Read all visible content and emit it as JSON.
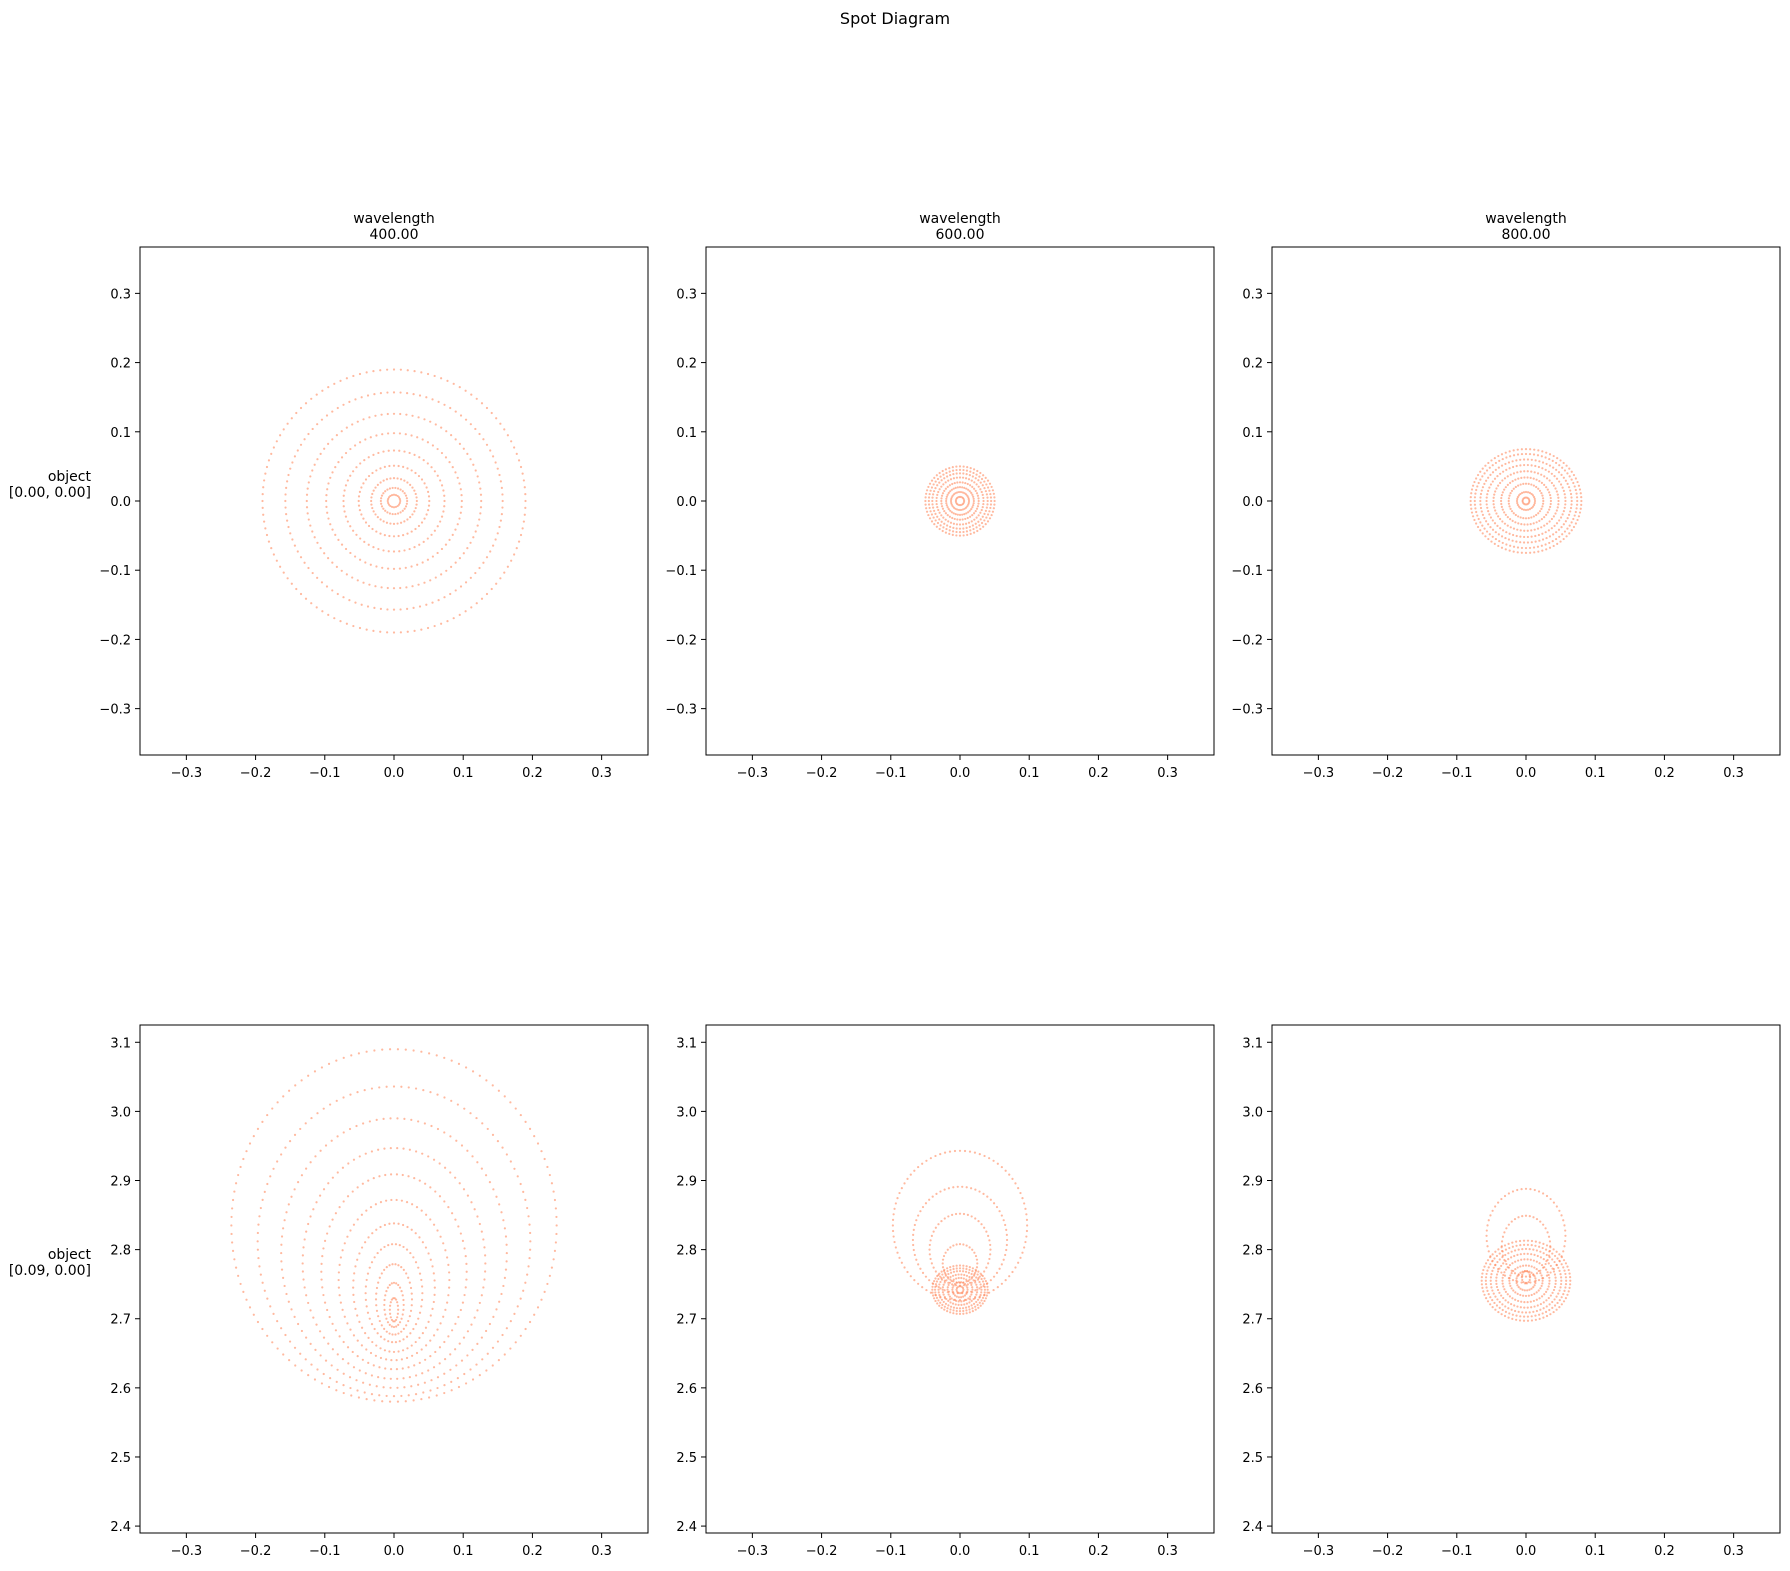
{
  "figure": {
    "title": "Spot Diagram",
    "marker_color": "#ff7f50"
  },
  "chart_data": [
    {
      "type": "scatter",
      "title": "wavelength\n400.00",
      "row_label": "object\n[0.00, 0.00]",
      "xlim": [
        -0.367,
        0.367
      ],
      "ylim": [
        -0.367,
        0.367
      ],
      "xticks": [
        "−0.3",
        "−0.2",
        "−0.1",
        "0.0",
        "0.1",
        "0.2",
        "0.3"
      ],
      "yticks": [
        "−0.3",
        "−0.2",
        "−0.1",
        "0.0",
        "0.1",
        "0.2",
        "0.3"
      ],
      "grid": false,
      "rings": [
        {
          "cx": 0,
          "cy": 0,
          "rx": 0.19,
          "ry": 0.19,
          "n": 120
        },
        {
          "cx": 0,
          "cy": 0,
          "rx": 0.157,
          "ry": 0.157,
          "n": 104
        },
        {
          "cx": 0,
          "cy": 0,
          "rx": 0.126,
          "ry": 0.126,
          "n": 88
        },
        {
          "cx": 0,
          "cy": 0,
          "rx": 0.098,
          "ry": 0.098,
          "n": 72
        },
        {
          "cx": 0,
          "cy": 0,
          "rx": 0.073,
          "ry": 0.073,
          "n": 60
        },
        {
          "cx": 0,
          "cy": 0,
          "rx": 0.051,
          "ry": 0.051,
          "n": 48
        },
        {
          "cx": 0,
          "cy": 0,
          "rx": 0.033,
          "ry": 0.033,
          "n": 40
        },
        {
          "cx": 0,
          "cy": 0,
          "rx": 0.019,
          "ry": 0.019,
          "n": 30
        },
        {
          "cx": 0,
          "cy": 0,
          "rx": 0.009,
          "ry": 0.009,
          "n": 20
        }
      ]
    },
    {
      "type": "scatter",
      "title": "wavelength\n600.00",
      "row_label": "",
      "xlim": [
        -0.367,
        0.367
      ],
      "ylim": [
        -0.367,
        0.367
      ],
      "xticks": [
        "−0.3",
        "−0.2",
        "−0.1",
        "0.0",
        "0.1",
        "0.2",
        "0.3"
      ],
      "yticks": [
        "−0.3",
        "−0.2",
        "−0.1",
        "0.0",
        "0.1",
        "0.2",
        "0.3"
      ],
      "grid": false,
      "rings": [
        {
          "cx": 0,
          "cy": 0,
          "rx": 0.05,
          "ry": 0.05,
          "n": 60
        },
        {
          "cx": 0,
          "cy": 0,
          "rx": 0.045,
          "ry": 0.045,
          "n": 56
        },
        {
          "cx": 0,
          "cy": 0,
          "rx": 0.04,
          "ry": 0.04,
          "n": 52
        },
        {
          "cx": 0,
          "cy": 0,
          "rx": 0.034,
          "ry": 0.034,
          "n": 48
        },
        {
          "cx": 0,
          "cy": 0,
          "rx": 0.027,
          "ry": 0.027,
          "n": 44
        },
        {
          "cx": 0,
          "cy": 0,
          "rx": 0.02,
          "ry": 0.02,
          "n": 40
        },
        {
          "cx": 0,
          "cy": 0,
          "rx": 0.013,
          "ry": 0.013,
          "n": 30
        },
        {
          "cx": 0,
          "cy": 0,
          "rx": 0.006,
          "ry": 0.006,
          "n": 16
        }
      ]
    },
    {
      "type": "scatter",
      "title": "wavelength\n800.00",
      "row_label": "",
      "xlim": [
        -0.367,
        0.367
      ],
      "ylim": [
        -0.367,
        0.367
      ],
      "xticks": [
        "−0.3",
        "−0.2",
        "−0.1",
        "0.0",
        "0.1",
        "0.2",
        "0.3"
      ],
      "yticks": [
        "−0.3",
        "−0.2",
        "−0.1",
        "0.0",
        "0.1",
        "0.2",
        "0.3"
      ],
      "grid": false,
      "rings": [
        {
          "cx": 0,
          "cy": 0,
          "rx": 0.08,
          "ry": 0.075,
          "n": 84
        },
        {
          "cx": 0,
          "cy": 0,
          "rx": 0.074,
          "ry": 0.068,
          "n": 80
        },
        {
          "cx": 0,
          "cy": 0,
          "rx": 0.066,
          "ry": 0.06,
          "n": 74
        },
        {
          "cx": 0,
          "cy": 0,
          "rx": 0.057,
          "ry": 0.052,
          "n": 66
        },
        {
          "cx": 0,
          "cy": 0,
          "rx": 0.047,
          "ry": 0.043,
          "n": 58
        },
        {
          "cx": 0,
          "cy": 0,
          "rx": 0.036,
          "ry": 0.034,
          "n": 50
        },
        {
          "cx": 0,
          "cy": 0,
          "rx": 0.025,
          "ry": 0.025,
          "n": 40
        },
        {
          "cx": 0,
          "cy": 0,
          "rx": 0.013,
          "ry": 0.013,
          "n": 28
        },
        {
          "cx": 0,
          "cy": 0,
          "rx": 0.005,
          "ry": 0.005,
          "n": 14
        }
      ]
    },
    {
      "type": "scatter",
      "title": "",
      "row_label": "object\n[0.09, 0.00]",
      "xlim": [
        -0.367,
        0.367
      ],
      "ylim": [
        2.39,
        3.125
      ],
      "xticks": [
        "−0.3",
        "−0.2",
        "−0.1",
        "0.0",
        "0.1",
        "0.2",
        "0.3"
      ],
      "yticks": [
        "2.4",
        "2.5",
        "2.6",
        "2.7",
        "2.8",
        "2.9",
        "3.0",
        "3.1"
      ],
      "grid": false,
      "rings": [
        {
          "cx": 0,
          "cy": 2.835,
          "rx": 0.235,
          "ry": 0.255,
          "n": 130
        },
        {
          "cx": 0,
          "cy": 2.812,
          "rx": 0.197,
          "ry": 0.224,
          "n": 116
        },
        {
          "cx": 0,
          "cy": 2.795,
          "rx": 0.163,
          "ry": 0.195,
          "n": 102
        },
        {
          "cx": 0,
          "cy": 2.78,
          "rx": 0.132,
          "ry": 0.167,
          "n": 90
        },
        {
          "cx": 0,
          "cy": 2.768,
          "rx": 0.105,
          "ry": 0.141,
          "n": 78
        },
        {
          "cx": 0,
          "cy": 2.756,
          "rx": 0.08,
          "ry": 0.116,
          "n": 66
        },
        {
          "cx": 0,
          "cy": 2.745,
          "rx": 0.059,
          "ry": 0.093,
          "n": 56
        },
        {
          "cx": 0,
          "cy": 2.737,
          "rx": 0.041,
          "ry": 0.071,
          "n": 46
        },
        {
          "cx": 0,
          "cy": 2.728,
          "rx": 0.026,
          "ry": 0.051,
          "n": 38
        },
        {
          "cx": 0,
          "cy": 2.72,
          "rx": 0.014,
          "ry": 0.032,
          "n": 28
        },
        {
          "cx": 0,
          "cy": 2.713,
          "rx": 0.006,
          "ry": 0.017,
          "n": 18
        }
      ]
    },
    {
      "type": "scatter",
      "title": "",
      "row_label": "",
      "xlim": [
        -0.367,
        0.367
      ],
      "ylim": [
        2.39,
        3.125
      ],
      "xticks": [
        "−0.3",
        "−0.2",
        "−0.1",
        "0.0",
        "0.1",
        "0.2",
        "0.3"
      ],
      "yticks": [
        "2.4",
        "2.5",
        "2.6",
        "2.7",
        "2.8",
        "2.9",
        "3.0",
        "3.1"
      ],
      "grid": false,
      "rings": [
        {
          "cx": 0,
          "cy": 2.835,
          "rx": 0.097,
          "ry": 0.108,
          "n": 84
        },
        {
          "cx": 0,
          "cy": 2.814,
          "rx": 0.068,
          "ry": 0.077,
          "n": 66
        },
        {
          "cx": 0,
          "cy": 2.8,
          "rx": 0.044,
          "ry": 0.052,
          "n": 48
        },
        {
          "cx": 0,
          "cy": 2.78,
          "rx": 0.025,
          "ry": 0.028,
          "n": 32
        },
        {
          "cx": 0,
          "cy": 2.742,
          "rx": 0.04,
          "ry": 0.035,
          "n": 52
        },
        {
          "cx": 0,
          "cy": 2.742,
          "rx": 0.036,
          "ry": 0.031,
          "n": 48
        },
        {
          "cx": 0,
          "cy": 2.742,
          "rx": 0.031,
          "ry": 0.027,
          "n": 44
        },
        {
          "cx": 0,
          "cy": 2.742,
          "rx": 0.025,
          "ry": 0.022,
          "n": 38
        },
        {
          "cx": 0,
          "cy": 2.742,
          "rx": 0.018,
          "ry": 0.017,
          "n": 30
        },
        {
          "cx": 0,
          "cy": 2.742,
          "rx": 0.011,
          "ry": 0.011,
          "n": 22
        },
        {
          "cx": 0,
          "cy": 2.742,
          "rx": 0.005,
          "ry": 0.005,
          "n": 12
        }
      ]
    },
    {
      "type": "scatter",
      "title": "",
      "row_label": "",
      "xlim": [
        -0.367,
        0.367
      ],
      "ylim": [
        2.39,
        3.125
      ],
      "xticks": [
        "−0.3",
        "−0.2",
        "−0.1",
        "0.0",
        "0.1",
        "0.2",
        "0.3"
      ],
      "yticks": [
        "2.4",
        "2.5",
        "2.6",
        "2.7",
        "2.8",
        "2.9",
        "3.0",
        "3.1"
      ],
      "grid": false,
      "rings": [
        {
          "cx": 0,
          "cy": 2.82,
          "rx": 0.057,
          "ry": 0.068,
          "n": 56
        },
        {
          "cx": 0,
          "cy": 2.805,
          "rx": 0.035,
          "ry": 0.044,
          "n": 40
        },
        {
          "cx": 0,
          "cy": 2.755,
          "rx": 0.064,
          "ry": 0.058,
          "n": 70
        },
        {
          "cx": 0,
          "cy": 2.755,
          "rx": 0.058,
          "ry": 0.052,
          "n": 66
        },
        {
          "cx": 0,
          "cy": 2.755,
          "rx": 0.051,
          "ry": 0.046,
          "n": 60
        },
        {
          "cx": 0,
          "cy": 2.755,
          "rx": 0.043,
          "ry": 0.039,
          "n": 54
        },
        {
          "cx": 0,
          "cy": 2.755,
          "rx": 0.034,
          "ry": 0.031,
          "n": 46
        },
        {
          "cx": 0,
          "cy": 2.755,
          "rx": 0.024,
          "ry": 0.022,
          "n": 36
        },
        {
          "cx": 0,
          "cy": 2.755,
          "rx": 0.014,
          "ry": 0.014,
          "n": 26
        },
        {
          "cx": 0,
          "cy": 2.76,
          "rx": 0.006,
          "ry": 0.009,
          "n": 14
        }
      ]
    }
  ]
}
